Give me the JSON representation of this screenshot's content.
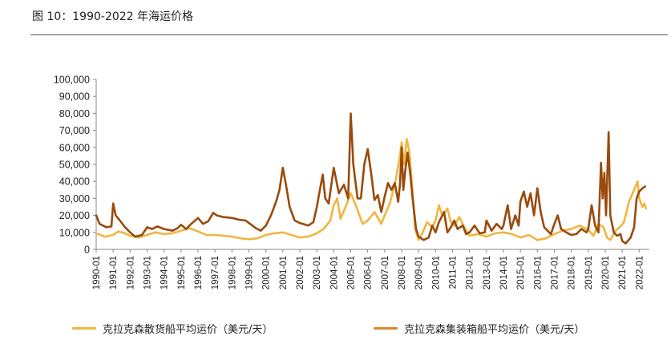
{
  "figure": {
    "title": "图 10：1990-2022 年海运价格"
  },
  "colors": {
    "bulk": "#F0B640",
    "container": "#9A4A0C",
    "axis": "#888888"
  },
  "chart_data": {
    "type": "line",
    "title": "",
    "xlabel": "",
    "ylabel": "",
    "ylim": [
      0,
      100000
    ],
    "yticks": [
      "0",
      "10,000",
      "20,000",
      "30,000",
      "40,000",
      "50,000",
      "60,000",
      "70,000",
      "80,000",
      "90,000",
      "100,000"
    ],
    "xticks": [
      "1990-01",
      "1991-01",
      "1992-01",
      "1993-01",
      "1994-01",
      "1995-01",
      "1996-01",
      "1997-01",
      "1998-01",
      "1999-01",
      "2000-01",
      "2001-01",
      "2002-01",
      "2003-01",
      "2004-01",
      "2005-01",
      "2006-01",
      "2007-01",
      "2008-01",
      "2009-01",
      "2010-01",
      "2011-01",
      "2012-01",
      "2013-01",
      "2014-01",
      "2015-01",
      "2016-01",
      "2017-01",
      "2018-01",
      "2019-01",
      "2020-01",
      "2021-01",
      "2022-01"
    ],
    "grid": false,
    "legend_position": "bottom",
    "series": [
      {
        "name": "克拉克森散货船平均运价（美元/天）",
        "color": "#F0B640",
        "points": [
          [
            1990.0,
            9500
          ],
          [
            1990.5,
            7500
          ],
          [
            1991.0,
            8500
          ],
          [
            1991.3,
            10500
          ],
          [
            1991.7,
            9500
          ],
          [
            1992.0,
            8000
          ],
          [
            1992.5,
            7000
          ],
          [
            1993.0,
            8500
          ],
          [
            1993.5,
            10000
          ],
          [
            1994.0,
            9000
          ],
          [
            1994.5,
            9500
          ],
          [
            1995.0,
            11000
          ],
          [
            1995.5,
            12500
          ],
          [
            1996.0,
            10500
          ],
          [
            1996.5,
            8500
          ],
          [
            1997.0,
            8500
          ],
          [
            1997.5,
            8000
          ],
          [
            1998.0,
            7500
          ],
          [
            1998.5,
            6500
          ],
          [
            1999.0,
            6000
          ],
          [
            1999.5,
            6500
          ],
          [
            2000.0,
            8500
          ],
          [
            2000.5,
            9500
          ],
          [
            2001.0,
            10000
          ],
          [
            2001.5,
            8500
          ],
          [
            2002.0,
            7000
          ],
          [
            2002.5,
            7500
          ],
          [
            2003.0,
            9500
          ],
          [
            2003.4,
            12000
          ],
          [
            2003.8,
            17000
          ],
          [
            2004.0,
            26000
          ],
          [
            2004.2,
            30000
          ],
          [
            2004.4,
            18000
          ],
          [
            2004.7,
            25000
          ],
          [
            2005.0,
            33000
          ],
          [
            2005.3,
            26000
          ],
          [
            2005.7,
            15000
          ],
          [
            2006.0,
            17000
          ],
          [
            2006.4,
            22000
          ],
          [
            2006.8,
            15000
          ],
          [
            2007.0,
            20000
          ],
          [
            2007.3,
            27000
          ],
          [
            2007.6,
            38000
          ],
          [
            2007.9,
            55000
          ],
          [
            2008.0,
            63000
          ],
          [
            2008.15,
            50000
          ],
          [
            2008.3,
            65000
          ],
          [
            2008.45,
            58000
          ],
          [
            2008.6,
            40000
          ],
          [
            2008.8,
            12000
          ],
          [
            2009.0,
            5500
          ],
          [
            2009.2,
            9000
          ],
          [
            2009.5,
            16000
          ],
          [
            2009.8,
            13000
          ],
          [
            2010.0,
            17000
          ],
          [
            2010.2,
            26000
          ],
          [
            2010.4,
            20000
          ],
          [
            2010.7,
            24000
          ],
          [
            2010.9,
            16000
          ],
          [
            2011.1,
            14000
          ],
          [
            2011.4,
            19000
          ],
          [
            2011.7,
            13000
          ],
          [
            2012.0,
            8000
          ],
          [
            2012.5,
            9000
          ],
          [
            2013.0,
            7500
          ],
          [
            2013.5,
            9500
          ],
          [
            2014.0,
            10000
          ],
          [
            2014.5,
            9000
          ],
          [
            2015.0,
            7000
          ],
          [
            2015.5,
            8500
          ],
          [
            2016.0,
            5500
          ],
          [
            2016.5,
            6500
          ],
          [
            2017.0,
            9000
          ],
          [
            2017.5,
            11000
          ],
          [
            2018.0,
            12000
          ],
          [
            2018.5,
            14000
          ],
          [
            2019.0,
            11500
          ],
          [
            2019.3,
            8000
          ],
          [
            2019.6,
            15000
          ],
          [
            2019.9,
            13000
          ],
          [
            2020.1,
            7000
          ],
          [
            2020.3,
            5500
          ],
          [
            2020.6,
            11000
          ],
          [
            2020.9,
            13500
          ],
          [
            2021.1,
            16000
          ],
          [
            2021.4,
            28000
          ],
          [
            2021.7,
            35000
          ],
          [
            2021.9,
            40000
          ],
          [
            2022.0,
            30000
          ],
          [
            2022.2,
            25000
          ],
          [
            2022.3,
            27000
          ],
          [
            2022.4,
            24000
          ]
        ]
      },
      {
        "name": "克拉克森集装箱船平均运价（美元/天）",
        "color": "#9A4A0C",
        "points": [
          [
            1990.0,
            20000
          ],
          [
            1990.2,
            15000
          ],
          [
            1990.6,
            13000
          ],
          [
            1990.9,
            13500
          ],
          [
            1991.0,
            27000
          ],
          [
            1991.15,
            20000
          ],
          [
            1991.4,
            17000
          ],
          [
            1991.7,
            13000
          ],
          [
            1992.0,
            10000
          ],
          [
            1992.3,
            7500
          ],
          [
            1992.7,
            8500
          ],
          [
            1993.0,
            13000
          ],
          [
            1993.3,
            12000
          ],
          [
            1993.6,
            13500
          ],
          [
            1994.0,
            12000
          ],
          [
            1994.5,
            11000
          ],
          [
            1994.8,
            12500
          ],
          [
            1995.0,
            14500
          ],
          [
            1995.3,
            12000
          ],
          [
            1995.6,
            15000
          ],
          [
            1996.0,
            18500
          ],
          [
            1996.3,
            15000
          ],
          [
            1996.6,
            16500
          ],
          [
            1996.9,
            21500
          ],
          [
            1997.1,
            20000
          ],
          [
            1997.5,
            19000
          ],
          [
            1998.0,
            18500
          ],
          [
            1998.4,
            17500
          ],
          [
            1998.8,
            17000
          ],
          [
            1999.0,
            15500
          ],
          [
            1999.4,
            12500
          ],
          [
            1999.7,
            11000
          ],
          [
            2000.0,
            14000
          ],
          [
            2000.3,
            20000
          ],
          [
            2000.6,
            28000
          ],
          [
            2000.8,
            35000
          ],
          [
            2001.0,
            48000
          ],
          [
            2001.2,
            37000
          ],
          [
            2001.4,
            25000
          ],
          [
            2001.7,
            17000
          ],
          [
            2002.0,
            15500
          ],
          [
            2002.5,
            14000
          ],
          [
            2002.8,
            16000
          ],
          [
            2003.0,
            25000
          ],
          [
            2003.2,
            36000
          ],
          [
            2003.35,
            44000
          ],
          [
            2003.5,
            30000
          ],
          [
            2003.7,
            27000
          ],
          [
            2004.0,
            48000
          ],
          [
            2004.3,
            33000
          ],
          [
            2004.6,
            38000
          ],
          [
            2004.85,
            30000
          ],
          [
            2005.0,
            80000
          ],
          [
            2005.15,
            50000
          ],
          [
            2005.4,
            30000
          ],
          [
            2005.6,
            30000
          ],
          [
            2005.8,
            50000
          ],
          [
            2006.0,
            59000
          ],
          [
            2006.2,
            45000
          ],
          [
            2006.4,
            29000
          ],
          [
            2006.6,
            32000
          ],
          [
            2006.8,
            22000
          ],
          [
            2007.0,
            31000
          ],
          [
            2007.2,
            39000
          ],
          [
            2007.4,
            35000
          ],
          [
            2007.6,
            39000
          ],
          [
            2007.8,
            28000
          ],
          [
            2007.9,
            38000
          ],
          [
            2008.0,
            60000
          ],
          [
            2008.1,
            35000
          ],
          [
            2008.2,
            45000
          ],
          [
            2008.35,
            57000
          ],
          [
            2008.5,
            45000
          ],
          [
            2008.65,
            30000
          ],
          [
            2008.85,
            12000
          ],
          [
            2009.0,
            7500
          ],
          [
            2009.3,
            5500
          ],
          [
            2009.6,
            7000
          ],
          [
            2009.8,
            14000
          ],
          [
            2010.0,
            10000
          ],
          [
            2010.2,
            16000
          ],
          [
            2010.5,
            22000
          ],
          [
            2010.7,
            10000
          ],
          [
            2010.9,
            13000
          ],
          [
            2011.1,
            17000
          ],
          [
            2011.3,
            12000
          ],
          [
            2011.6,
            14000
          ],
          [
            2011.8,
            9000
          ],
          [
            2012.0,
            10000
          ],
          [
            2012.3,
            14000
          ],
          [
            2012.6,
            9500
          ],
          [
            2012.9,
            10000
          ],
          [
            2013.0,
            17000
          ],
          [
            2013.3,
            11000
          ],
          [
            2013.6,
            15000
          ],
          [
            2013.9,
            12000
          ],
          [
            2014.0,
            14000
          ],
          [
            2014.25,
            26000
          ],
          [
            2014.45,
            12000
          ],
          [
            2014.7,
            20000
          ],
          [
            2014.9,
            14000
          ],
          [
            2015.0,
            28000
          ],
          [
            2015.2,
            34000
          ],
          [
            2015.4,
            25000
          ],
          [
            2015.6,
            33000
          ],
          [
            2015.8,
            20000
          ],
          [
            2016.0,
            36000
          ],
          [
            2016.2,
            22000
          ],
          [
            2016.4,
            13000
          ],
          [
            2016.6,
            11000
          ],
          [
            2016.8,
            9000
          ],
          [
            2017.0,
            15000
          ],
          [
            2017.2,
            20000
          ],
          [
            2017.4,
            12000
          ],
          [
            2017.7,
            10000
          ],
          [
            2018.0,
            8500
          ],
          [
            2018.3,
            9000
          ],
          [
            2018.6,
            12000
          ],
          [
            2018.9,
            10000
          ],
          [
            2019.0,
            12000
          ],
          [
            2019.2,
            26000
          ],
          [
            2019.4,
            14000
          ],
          [
            2019.6,
            10000
          ],
          [
            2019.75,
            51000
          ],
          [
            2019.85,
            30000
          ],
          [
            2019.95,
            45000
          ],
          [
            2020.05,
            20000
          ],
          [
            2020.2,
            69000
          ],
          [
            2020.3,
            20000
          ],
          [
            2020.5,
            10000
          ],
          [
            2020.7,
            8000
          ],
          [
            2020.9,
            9000
          ],
          [
            2021.0,
            5000
          ],
          [
            2021.2,
            3500
          ],
          [
            2021.5,
            7000
          ],
          [
            2021.7,
            13000
          ],
          [
            2021.85,
            30000
          ],
          [
            2022.0,
            34000
          ],
          [
            2022.2,
            36000
          ],
          [
            2022.35,
            37000
          ]
        ]
      }
    ]
  },
  "legend": {
    "bulk_label": "克拉克森散货船平均运价（美元/天）",
    "container_label": "克拉克森集装箱船平均运价（美元/天）"
  }
}
